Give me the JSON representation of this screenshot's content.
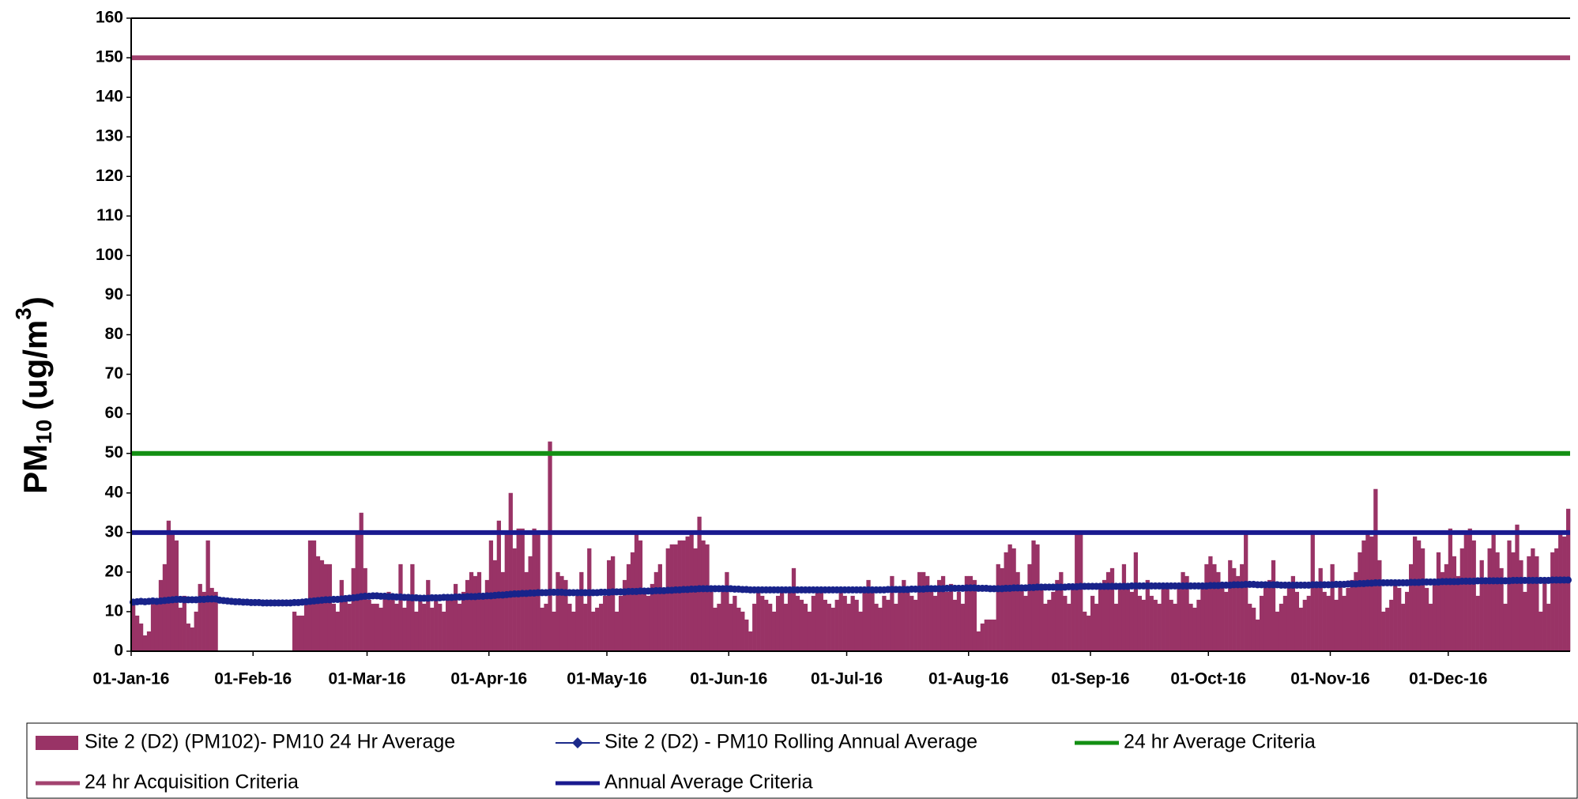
{
  "chart_data": {
    "type": "bar",
    "ylim": [
      0,
      160
    ],
    "yticks": [
      0,
      10,
      20,
      30,
      40,
      50,
      60,
      70,
      80,
      90,
      100,
      110,
      120,
      130,
      140,
      150,
      160
    ],
    "y_label": {
      "main": "PM",
      "sub": "10",
      "mid": " (ug/m",
      "sup": "3",
      "end": ")"
    },
    "legend": "bottom",
    "categories": [
      "01-Jan-16",
      null,
      null,
      null,
      null,
      null,
      null,
      null,
      null,
      null,
      null,
      null,
      null,
      null,
      null,
      null,
      null,
      null,
      null,
      null,
      null,
      null,
      null,
      null,
      null,
      null,
      null,
      null,
      null,
      null,
      null,
      "01-Feb-16",
      null,
      null,
      null,
      null,
      null,
      null,
      null,
      null,
      null,
      null,
      null,
      null,
      null,
      null,
      null,
      null,
      null,
      null,
      null,
      null,
      null,
      null,
      null,
      null,
      null,
      null,
      null,
      null,
      "01-Mar-16",
      null,
      null,
      null,
      null,
      null,
      null,
      null,
      null,
      null,
      null,
      null,
      null,
      null,
      null,
      null,
      null,
      null,
      null,
      null,
      null,
      null,
      null,
      null,
      null,
      null,
      null,
      null,
      null,
      null,
      null,
      "01-Apr-16",
      null,
      null,
      null,
      null,
      null,
      null,
      null,
      null,
      null,
      null,
      null,
      null,
      null,
      null,
      null,
      null,
      null,
      null,
      null,
      null,
      null,
      null,
      null,
      null,
      null,
      null,
      null,
      null,
      null,
      "01-May-16",
      null,
      null,
      null,
      null,
      null,
      null,
      null,
      null,
      null,
      null,
      null,
      null,
      null,
      null,
      null,
      null,
      null,
      null,
      null,
      null,
      null,
      null,
      null,
      null,
      null,
      null,
      null,
      null,
      null,
      null,
      "01-Jun-16",
      null,
      null,
      null,
      null,
      null,
      null,
      null,
      null,
      null,
      null,
      null,
      null,
      null,
      null,
      null,
      null,
      null,
      null,
      null,
      null,
      null,
      null,
      null,
      null,
      null,
      null,
      null,
      null,
      null,
      "01-Jul-16",
      null,
      null,
      null,
      null,
      null,
      null,
      null,
      null,
      null,
      null,
      null,
      null,
      null,
      null,
      null,
      null,
      null,
      null,
      null,
      null,
      null,
      null,
      null,
      null,
      null,
      null,
      null,
      null,
      null,
      null,
      "01-Aug-16",
      null,
      null,
      null,
      null,
      null,
      null,
      null,
      null,
      null,
      null,
      null,
      null,
      null,
      null,
      null,
      null,
      null,
      null,
      null,
      null,
      null,
      null,
      null,
      null,
      null,
      null,
      null,
      null,
      null,
      null,
      "01-Sep-16",
      null,
      null,
      null,
      null,
      null,
      null,
      null,
      null,
      null,
      null,
      null,
      null,
      null,
      null,
      null,
      null,
      null,
      null,
      null,
      null,
      null,
      null,
      null,
      null,
      null,
      null,
      null,
      null,
      null,
      "01-Oct-16",
      null,
      null,
      null,
      null,
      null,
      null,
      null,
      null,
      null,
      null,
      null,
      null,
      null,
      null,
      null,
      null,
      null,
      null,
      null,
      null,
      null,
      null,
      null,
      null,
      null,
      null,
      null,
      null,
      null,
      null,
      "01-Nov-16",
      null,
      null,
      null,
      null,
      null,
      null,
      null,
      null,
      null,
      null,
      null,
      null,
      null,
      null,
      null,
      null,
      null,
      null,
      null,
      null,
      null,
      null,
      null,
      null,
      null,
      null,
      null,
      null,
      null,
      "01-Dec-16",
      null,
      null,
      null,
      null,
      null,
      null,
      null,
      null,
      null,
      null,
      null,
      null,
      null,
      null,
      null,
      null,
      null,
      null,
      null,
      null,
      null,
      null,
      null,
      null,
      null,
      null,
      null,
      null,
      null,
      null
    ],
    "series": [
      {
        "name": "Site 2 (D2) (PM102)- PM10 24 Hr Average",
        "type": "bar",
        "color": "#993366",
        "values": [
          12,
          9,
          7,
          4,
          5,
          12,
          13,
          18,
          22,
          33,
          30,
          28,
          11,
          14,
          7,
          6,
          10,
          17,
          15,
          28,
          16,
          15,
          null,
          null,
          null,
          null,
          null,
          null,
          null,
          null,
          null,
          null,
          null,
          null,
          null,
          null,
          null,
          null,
          null,
          null,
          null,
          10,
          9,
          9,
          12,
          28,
          28,
          24,
          23,
          22,
          22,
          12,
          10,
          18,
          14,
          12,
          21,
          30,
          35,
          21,
          13,
          12,
          12,
          11,
          14,
          15,
          13,
          12,
          22,
          11,
          14,
          22,
          10,
          13,
          12,
          18,
          11,
          14,
          12,
          10,
          14,
          13,
          17,
          12,
          15,
          18,
          20,
          19,
          20,
          14,
          18,
          28,
          23,
          33,
          20,
          30,
          40,
          26,
          31,
          31,
          20,
          24,
          31,
          30,
          11,
          12,
          53,
          10,
          20,
          19,
          18,
          12,
          10,
          14,
          20,
          12,
          26,
          10,
          11,
          12,
          14,
          23,
          24,
          10,
          14,
          18,
          22,
          25,
          30,
          28,
          15,
          14,
          17,
          20,
          22,
          16,
          26,
          27,
          27,
          28,
          28,
          29,
          30,
          26,
          34,
          28,
          27,
          15,
          11,
          12,
          16,
          20,
          12,
          14,
          11,
          10,
          8,
          5,
          12,
          15,
          14,
          13,
          12,
          10,
          14,
          15,
          12,
          16,
          21,
          14,
          13,
          12,
          10,
          14,
          16,
          15,
          13,
          12,
          11,
          13,
          15,
          14,
          12,
          14,
          13,
          10,
          16,
          18,
          15,
          12,
          11,
          14,
          13,
          19,
          12,
          16,
          18,
          15,
          14,
          13,
          20,
          20,
          19,
          16,
          14,
          18,
          19,
          15,
          17,
          13,
          15,
          12,
          19,
          19,
          18,
          5,
          7,
          8,
          8,
          8,
          22,
          21,
          25,
          27,
          26,
          20,
          16,
          14,
          22,
          28,
          27,
          16,
          12,
          13,
          15,
          18,
          20,
          14,
          12,
          16,
          30,
          30,
          10,
          9,
          14,
          12,
          16,
          18,
          20,
          21,
          12,
          17,
          22,
          16,
          15,
          25,
          14,
          13,
          18,
          14,
          13,
          12,
          16,
          17,
          13,
          12,
          17,
          20,
          19,
          12,
          11,
          13,
          17,
          22,
          24,
          22,
          20,
          16,
          15,
          23,
          21,
          19,
          22,
          30,
          12,
          11,
          8,
          14,
          16,
          18,
          23,
          10,
          12,
          14,
          16,
          19,
          15,
          11,
          13,
          14,
          30,
          16,
          21,
          15,
          14,
          22,
          13,
          17,
          14,
          16,
          18,
          20,
          25,
          28,
          30,
          29,
          41,
          23,
          10,
          11,
          13,
          18,
          16,
          12,
          15,
          22,
          29,
          28,
          26,
          16,
          12,
          18,
          25,
          20,
          22,
          31,
          24,
          19,
          26,
          30,
          31,
          28,
          14,
          23,
          17,
          26,
          30,
          25,
          21,
          12,
          28,
          25,
          32,
          23,
          15,
          24,
          26,
          24,
          10,
          18,
          12,
          25,
          26,
          30,
          29,
          36
        ]
      },
      {
        "name": "Site 2 (D2) - PM10 Rolling Annual Average",
        "type": "line",
        "color": "#1c2a8a",
        "values": [
          12.4,
          12.5,
          12.6,
          12.5,
          12.6,
          12.7,
          12.6,
          12.7,
          12.8,
          12.9,
          13.0,
          13.1,
          13.1,
          13.0,
          13.0,
          13.0,
          13.0,
          13.1,
          13.1,
          13.2,
          13.2,
          13.2,
          12.9,
          12.8,
          12.7,
          12.6,
          12.5,
          12.5,
          12.4,
          12.4,
          12.3,
          12.3,
          12.3,
          12.2,
          12.2,
          12.2,
          12.2,
          12.2,
          12.2,
          12.2,
          12.2,
          12.3,
          12.3,
          12.4,
          12.5,
          12.6,
          12.7,
          12.8,
          12.9,
          13.0,
          13.0,
          13.1,
          13.1,
          13.2,
          13.3,
          13.4,
          13.5,
          13.6,
          13.8,
          13.9,
          13.9,
          14.0,
          14.0,
          13.9,
          13.9,
          13.8,
          13.8,
          13.7,
          13.7,
          13.6,
          13.6,
          13.5,
          13.5,
          13.4,
          13.4,
          13.4,
          13.5,
          13.5,
          13.5,
          13.6,
          13.6,
          13.6,
          13.7,
          13.7,
          13.7,
          13.8,
          13.8,
          13.8,
          13.9,
          13.9,
          14.0,
          14.0,
          14.1,
          14.2,
          14.2,
          14.3,
          14.4,
          14.5,
          14.5,
          14.6,
          14.6,
          14.7,
          14.7,
          14.8,
          14.8,
          14.8,
          14.9,
          14.9,
          14.9,
          14.9,
          14.8,
          14.8,
          14.8,
          14.8,
          14.8,
          14.8,
          14.8,
          14.8,
          14.8,
          14.9,
          14.9,
          14.9,
          15.0,
          15.0,
          15.0,
          15.0,
          15.1,
          15.1,
          15.1,
          15.2,
          15.2,
          15.2,
          15.2,
          15.3,
          15.3,
          15.3,
          15.4,
          15.4,
          15.5,
          15.5,
          15.6,
          15.6,
          15.7,
          15.7,
          15.8,
          15.8,
          15.8,
          15.8,
          15.8,
          15.8,
          15.8,
          15.8,
          15.8,
          15.7,
          15.7,
          15.6,
          15.6,
          15.5,
          15.5,
          15.5,
          15.5,
          15.5,
          15.5,
          15.5,
          15.5,
          15.5,
          15.5,
          15.5,
          15.5,
          15.5,
          15.5,
          15.5,
          15.5,
          15.5,
          15.5,
          15.5,
          15.5,
          15.5,
          15.5,
          15.5,
          15.5,
          15.5,
          15.5,
          15.5,
          15.5,
          15.5,
          15.5,
          15.5,
          15.5,
          15.5,
          15.5,
          15.5,
          15.6,
          15.6,
          15.6,
          15.6,
          15.6,
          15.6,
          15.7,
          15.7,
          15.7,
          15.7,
          15.8,
          15.8,
          15.8,
          15.8,
          15.8,
          15.9,
          15.9,
          15.9,
          15.9,
          15.9,
          16.0,
          16.0,
          16.0,
          15.9,
          15.9,
          15.9,
          15.8,
          15.8,
          15.8,
          15.8,
          15.9,
          15.9,
          16.0,
          16.0,
          16.0,
          16.0,
          16.1,
          16.1,
          16.2,
          16.2,
          16.2,
          16.2,
          16.2,
          16.2,
          16.2,
          16.2,
          16.3,
          16.3,
          16.3,
          16.4,
          16.4,
          16.4,
          16.4,
          16.4,
          16.4,
          16.4,
          16.4,
          16.4,
          16.4,
          16.4,
          16.4,
          16.4,
          16.5,
          16.5,
          16.5,
          16.5,
          16.5,
          16.5,
          16.5,
          16.5,
          16.5,
          16.5,
          16.5,
          16.5,
          16.5,
          16.5,
          16.5,
          16.5,
          16.5,
          16.5,
          16.5,
          16.5,
          16.6,
          16.6,
          16.6,
          16.7,
          16.7,
          16.7,
          16.8,
          16.8,
          16.8,
          16.9,
          16.9,
          16.9,
          16.8,
          16.8,
          16.8,
          16.8,
          16.8,
          16.8,
          16.7,
          16.7,
          16.7,
          16.7,
          16.7,
          16.7,
          16.7,
          16.7,
          16.8,
          16.8,
          16.8,
          16.8,
          16.8,
          16.8,
          16.9,
          16.9,
          16.9,
          17.0,
          17.0,
          17.0,
          17.1,
          17.1,
          17.2,
          17.2,
          17.3,
          17.3,
          17.3,
          17.3,
          17.3,
          17.3,
          17.3,
          17.3,
          17.3,
          17.4,
          17.4,
          17.4,
          17.5,
          17.5,
          17.5,
          17.5,
          17.5,
          17.6,
          17.6,
          17.6,
          17.6,
          17.6,
          17.7,
          17.7,
          17.7,
          17.7,
          17.8,
          17.8,
          17.8,
          17.8,
          17.8,
          17.8,
          17.8,
          17.8,
          17.8,
          17.9,
          17.9,
          17.9,
          17.9,
          17.9,
          17.9,
          17.9,
          17.9,
          17.9,
          17.9,
          18.0,
          18.0,
          18.0,
          18.0,
          18.0
        ]
      },
      {
        "name": "24 hr Average Criteria",
        "type": "hline",
        "color": "#138f13",
        "value": 50
      },
      {
        "name": "24 hr Acquisition Criteria",
        "type": "hline",
        "color": "#a3426f",
        "value": 150
      },
      {
        "name": "Annual Average Criteria",
        "type": "hline",
        "color": "#1a1a8f",
        "value": 30
      }
    ]
  }
}
